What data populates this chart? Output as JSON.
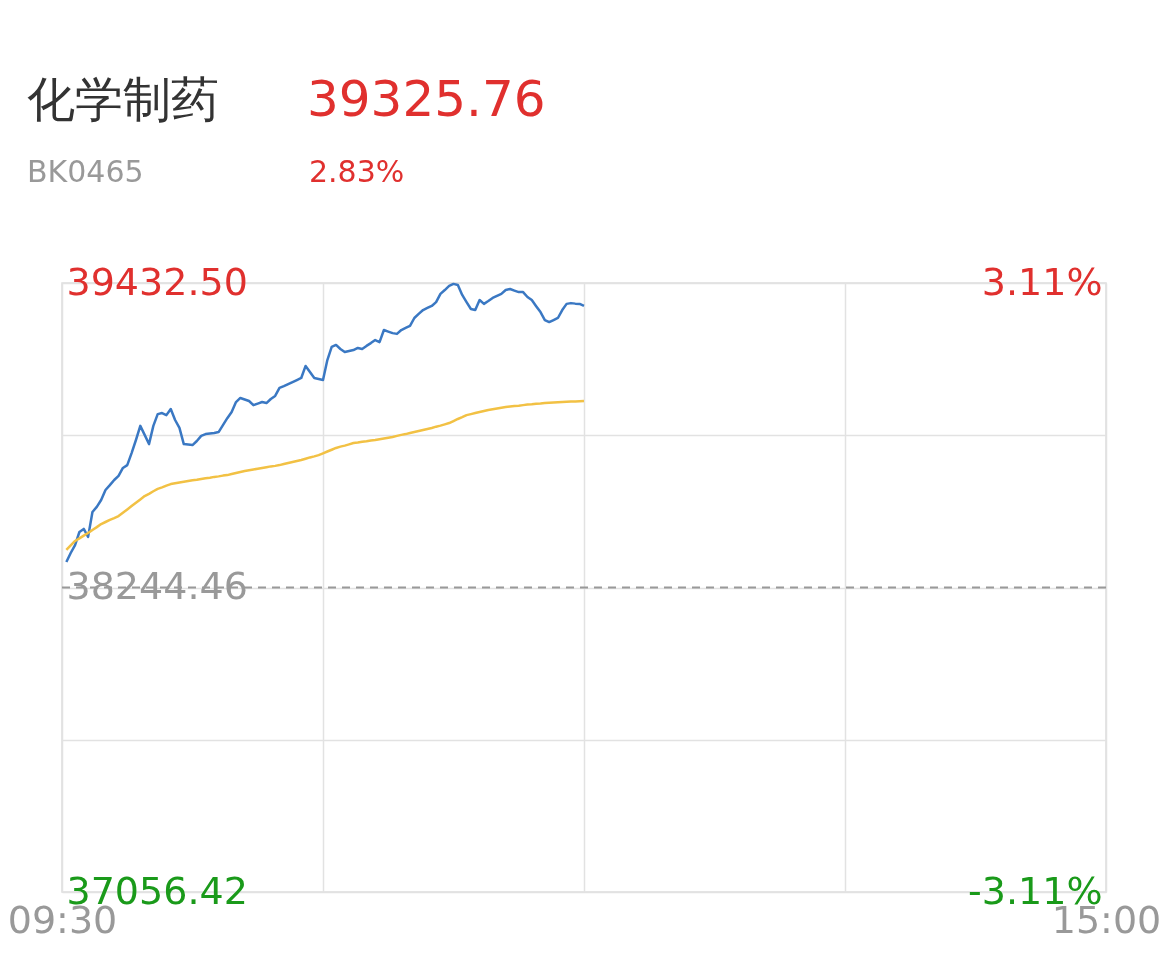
{
  "chart_data": {
    "type": "line",
    "title": "化学制药",
    "annotations": [
      "39325.76",
      "BK0465",
      "2.83%"
    ],
    "categories": [
      "09:30",
      null,
      null,
      null,
      null,
      null,
      null,
      null,
      null,
      null,
      null,
      null,
      null,
      null,
      null,
      null,
      null,
      null,
      null,
      null,
      null,
      null,
      null,
      null,
      null,
      null,
      null,
      null,
      null,
      null,
      null,
      null,
      null,
      null,
      null,
      null,
      null,
      null,
      null,
      null,
      null,
      null,
      null,
      null,
      null,
      null,
      null,
      null,
      null,
      null,
      null,
      null,
      null,
      null,
      null,
      null,
      null,
      null,
      null,
      null,
      null,
      null,
      null,
      null,
      null,
      null,
      null,
      null,
      null,
      null,
      null,
      null,
      null,
      null,
      null,
      null,
      null,
      null,
      null,
      null,
      null,
      null,
      null,
      null,
      null,
      null,
      null,
      null,
      null,
      null,
      null,
      null,
      null,
      null,
      null,
      null,
      null,
      null,
      null,
      null,
      null,
      null,
      null,
      null,
      null,
      null,
      null,
      null,
      null,
      null,
      null,
      null,
      null,
      null,
      null,
      null,
      null,
      null,
      null,
      null,
      null,
      null,
      null,
      null,
      null,
      null,
      null,
      null,
      null,
      null,
      null,
      null,
      null,
      null,
      null,
      null,
      null,
      null,
      null,
      null,
      null,
      null,
      null,
      null,
      null,
      null,
      null,
      null,
      null,
      null,
      null,
      null,
      null,
      null,
      null,
      null,
      null,
      null,
      null,
      null,
      null,
      null,
      null,
      null,
      null,
      null,
      null,
      null,
      null,
      null,
      null,
      null,
      null,
      null,
      null,
      null,
      null,
      null,
      null,
      null,
      null,
      null,
      null,
      null,
      null,
      null,
      null,
      null,
      null,
      null,
      null,
      null,
      null,
      null,
      null,
      null,
      null,
      null,
      null,
      null,
      null,
      null,
      null,
      null,
      null,
      null,
      null,
      null,
      null,
      null,
      null,
      null,
      null,
      null,
      null,
      null,
      null,
      null,
      null,
      null,
      null,
      null,
      null,
      null,
      null,
      null,
      null,
      null,
      null,
      null,
      null,
      null,
      null,
      null,
      null,
      null,
      null,
      null,
      null,
      null,
      "15:00"
    ],
    "series": [
      {
        "color": "#3a78c3",
        "values": [
          null,
          38344,
          38379,
          38410,
          38461,
          38473,
          38442,
          38539,
          38559,
          38586,
          38625,
          38644,
          38664,
          38680,
          38711,
          38722,
          38769,
          38820,
          38875,
          38840,
          38804,
          38875,
          38921,
          38925,
          38917,
          38941,
          38898,
          38867,
          38804,
          38802,
          38800,
          38816,
          38836,
          38843,
          38845,
          38847,
          38851,
          38878,
          38905,
          38929,
          38968,
          38984,
          38978,
          38972,
          38956,
          38962,
          38968,
          38964,
          38980,
          38992,
          39023,
          39030,
          39038,
          39046,
          39054,
          39062,
          39109,
          39085,
          39062,
          39058,
          39054,
          39132,
          39183,
          39191,
          39175,
          39163,
          39167,
          39171,
          39179,
          39175,
          39187,
          39198,
          39210,
          39202,
          39249,
          39243,
          39237,
          39234,
          39249,
          39257,
          39265,
          39296,
          39312,
          39327,
          39335,
          39343,
          39358,
          39390,
          39405,
          39421,
          39429,
          39425,
          39386,
          39358,
          39331,
          39327,
          39366,
          39351,
          39362,
          39374,
          39382,
          39390,
          39405,
          39409,
          39403,
          39397,
          39397,
          39378,
          39366,
          39342,
          39319,
          39288,
          39280,
          39288,
          39296,
          39327,
          39351,
          39354,
          39352,
          39351,
          39343,
          null,
          null,
          null,
          null,
          null,
          null,
          null,
          null,
          null,
          null,
          null,
          null,
          null,
          null,
          null,
          null,
          null,
          null,
          null,
          null,
          null,
          null,
          null,
          null,
          null,
          null,
          null,
          null,
          null,
          null,
          null,
          null,
          null,
          null,
          null,
          null,
          null,
          null,
          null,
          null,
          null,
          null,
          null,
          null,
          null,
          null,
          null,
          null,
          null,
          null,
          null,
          null,
          null,
          null,
          null,
          null,
          null,
          null,
          null,
          null,
          null,
          null,
          null,
          null,
          null,
          null,
          null,
          null,
          null,
          null,
          null,
          null,
          null,
          null,
          null,
          null,
          null,
          null,
          null,
          null,
          null,
          null,
          null,
          null,
          null,
          null,
          null,
          null,
          null,
          null,
          null,
          null,
          null,
          null,
          null,
          null,
          null,
          null,
          null,
          null,
          null,
          null,
          null,
          null,
          null,
          null,
          null,
          null,
          null,
          null,
          null,
          null,
          null,
          null,
          null,
          null,
          null,
          null,
          null,
          null
        ]
      },
      {
        "color": "#f2c144",
        "values": [
          null,
          38391,
          38409,
          38426,
          38436,
          38447,
          38457,
          38469,
          38480,
          38492,
          38500,
          38508,
          38515,
          38523,
          38536,
          38549,
          38562,
          38575,
          38588,
          38601,
          38610,
          38620,
          38629,
          38635,
          38642,
          38648,
          38651,
          38654,
          38657,
          38660,
          38663,
          38665,
          38668,
          38671,
          38673,
          38676,
          38678,
          38681,
          38683,
          38687,
          38691,
          38695,
          38699,
          38702,
          38705,
          38708,
          38711,
          38714,
          38717,
          38719,
          38722,
          38726,
          38730,
          38734,
          38738,
          38742,
          38747,
          38752,
          38756,
          38761,
          38768,
          38775,
          38782,
          38789,
          38794,
          38798,
          38803,
          38808,
          38810,
          38813,
          38815,
          38818,
          38820,
          38823,
          38826,
          38829,
          38832,
          38836,
          38840,
          38843,
          38847,
          38851,
          38855,
          38859,
          38863,
          38867,
          38872,
          38876,
          38881,
          38886,
          38894,
          38902,
          38909,
          38917,
          38921,
          38925,
          38929,
          38933,
          38937,
          38940,
          38943,
          38946,
          38949,
          38951,
          38953,
          38954,
          38956,
          38958,
          38959,
          38961,
          38962,
          38964,
          38965,
          38966,
          38967,
          38968,
          38969,
          38970,
          38970,
          38971,
          38972,
          null,
          null,
          null,
          null,
          null,
          null,
          null,
          null,
          null,
          null,
          null,
          null,
          null,
          null,
          null,
          null,
          null,
          null,
          null,
          null,
          null,
          null,
          null,
          null,
          null,
          null,
          null,
          null,
          null,
          null,
          null,
          null,
          null,
          null,
          null,
          null,
          null,
          null,
          null,
          null,
          null,
          null,
          null,
          null,
          null,
          null,
          null,
          null,
          null,
          null,
          null,
          null,
          null,
          null,
          null,
          null,
          null,
          null,
          null,
          null,
          null,
          null,
          null,
          null,
          null,
          null,
          null,
          null,
          null,
          null,
          null,
          null,
          null,
          null,
          null,
          null,
          null,
          null,
          null,
          null,
          null,
          null,
          null,
          null,
          null,
          null,
          null,
          null,
          null,
          null,
          null,
          null,
          null,
          null,
          null,
          null,
          null,
          null,
          null,
          null,
          null,
          null,
          null,
          null,
          null,
          null,
          null,
          null,
          null,
          null,
          null,
          null,
          null,
          null,
          null,
          null,
          null,
          null,
          null,
          null
        ]
      }
    ],
    "ylim": [
      37056.42,
      39432.5
    ],
    "yticks": [
      {
        "value": 37056.42,
        "label": "37056.42"
      },
      {
        "value": 37650.44,
        "label": null
      },
      {
        "value": 38244.46,
        "label": "38244.46"
      },
      {
        "value": 38838.48,
        "label": null
      },
      {
        "value": 39432.5,
        "label": "39432.50"
      }
    ],
    "y2lim": [
      -3.11,
      3.11
    ],
    "y2ticks": [
      {
        "value": -3.11,
        "label": "-3.11%"
      },
      {
        "value": 3.11,
        "label": "3.11%"
      }
    ],
    "ref_lines": [
      {
        "axis": "y",
        "value": 38244.46,
        "color": "#999999",
        "line_style": "dashed"
      }
    ],
    "grid": true
  }
}
